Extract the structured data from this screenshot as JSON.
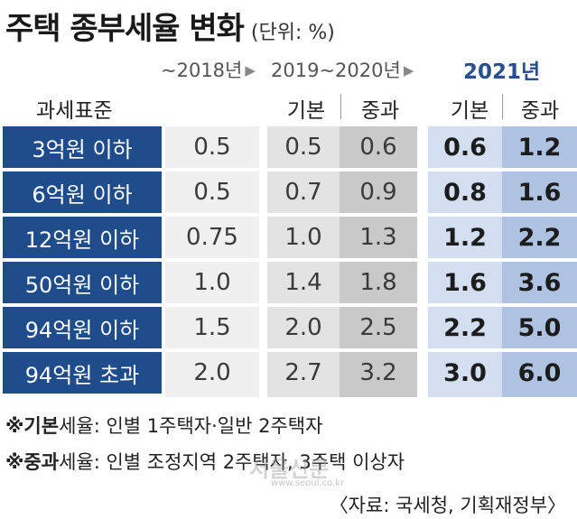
{
  "title": "주택 종부세율 변화",
  "unit": "(단위: %)",
  "periods": {
    "p1": "~2018년",
    "p2": "2019~2020년",
    "p3": "2021년"
  },
  "headers": {
    "category": "과세표준",
    "basic": "기본",
    "heavy": "중과"
  },
  "colors": {
    "label_bg": "#1f4c8a",
    "col_2018": "#f0f0f0",
    "col_2019_basic": "#e3e3e3",
    "col_2019_heavy": "#c9c9c9",
    "col_2021_basic": "#d3dff0",
    "col_2021_heavy": "#aec3e2",
    "accent_2021": "#2a4f8f"
  },
  "chart_data": {
    "type": "table",
    "columns": [
      "과세표준",
      "~2018년",
      "2019~2020년 기본",
      "2019~2020년 중과",
      "2021년 기본",
      "2021년 중과"
    ],
    "rows": [
      {
        "label": "3억원 이하",
        "y2018": "0.5",
        "y2019_basic": "0.5",
        "y2019_heavy": "0.6",
        "y2021_basic": "0.6",
        "y2021_heavy": "1.2"
      },
      {
        "label": "6억원 이하",
        "y2018": "0.5",
        "y2019_basic": "0.7",
        "y2019_heavy": "0.9",
        "y2021_basic": "0.8",
        "y2021_heavy": "1.6"
      },
      {
        "label": "12억원 이하",
        "y2018": "0.75",
        "y2019_basic": "1.0",
        "y2019_heavy": "1.3",
        "y2021_basic": "1.2",
        "y2021_heavy": "2.2"
      },
      {
        "label": "50억원 이하",
        "y2018": "1.0",
        "y2019_basic": "1.4",
        "y2019_heavy": "1.8",
        "y2021_basic": "1.6",
        "y2021_heavy": "3.6"
      },
      {
        "label": "94억원 이하",
        "y2018": "1.5",
        "y2019_basic": "2.0",
        "y2019_heavy": "2.5",
        "y2021_basic": "2.2",
        "y2021_heavy": "5.0"
      },
      {
        "label": "94억원 초과",
        "y2018": "2.0",
        "y2019_basic": "2.7",
        "y2019_heavy": "3.2",
        "y2021_basic": "3.0",
        "y2021_heavy": "6.0"
      }
    ]
  },
  "notes": {
    "basic_label": "※기본",
    "basic_text": "세율: 인별 1주택자·일반 2주택자",
    "heavy_label": "※중과",
    "heavy_text": "세율: 인별 조정지역 2주택자, 3주택 이상자"
  },
  "source": "〈자료: 국세청, 기획재정부〉",
  "watermark": "서울신문",
  "watermark_url": "www.seoul.co.kr"
}
